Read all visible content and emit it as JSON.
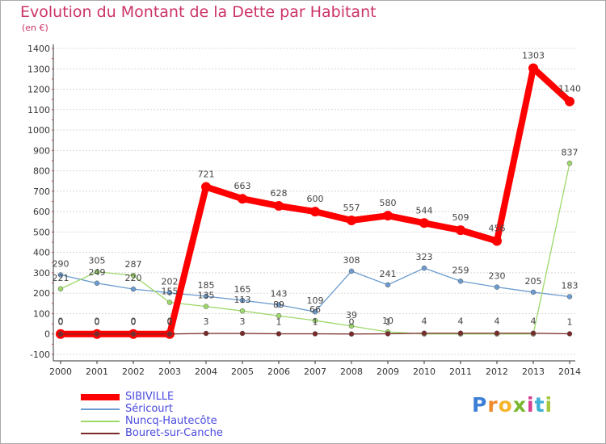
{
  "title": "Evolution du Montant de la Dette par Habitant",
  "unit": "(en €)",
  "brand": {
    "letters": [
      "P",
      "r",
      "o",
      "x",
      "i",
      "t",
      "i"
    ],
    "colors": [
      "#3d7fd6",
      "#f08a2a",
      "#f5b52f",
      "#79b82f",
      "#d63d8f",
      "#3db0d6",
      "#a5c83a"
    ]
  },
  "chart_data": {
    "type": "line",
    "x": [
      "2000",
      "2001",
      "2002",
      "2003",
      "2004",
      "2005",
      "2006",
      "2007",
      "2008",
      "2009",
      "2010",
      "2011",
      "2012",
      "2013",
      "2014"
    ],
    "ylim": [
      -100,
      1400
    ],
    "yticks": [
      "-100",
      "0",
      "100",
      "200",
      "300",
      "400",
      "500",
      "600",
      "700",
      "800",
      "900",
      "1000",
      "1100",
      "1200",
      "1300",
      "1400"
    ],
    "grid": "horizontal",
    "legend_position": "bottom-left",
    "series": [
      {
        "name": "SIBIVILLE",
        "color": "#ff0000",
        "values": [
          0,
          0,
          0,
          0,
          721,
          663,
          628,
          600,
          557,
          580,
          544,
          509,
          456,
          1303,
          1140
        ],
        "labels": [
          "0",
          "0",
          "0",
          "0",
          "721",
          "663",
          "628",
          "600",
          "557",
          "580",
          "544",
          "509",
          "456",
          "1303",
          "1140"
        ]
      },
      {
        "name": "Séricourt",
        "color": "#6c9ccf",
        "values": [
          290,
          249,
          220,
          202,
          185,
          165,
          143,
          109,
          308,
          241,
          323,
          259,
          230,
          205,
          183
        ],
        "labels": [
          "290",
          "249",
          "220",
          "202",
          "185",
          "165",
          "143",
          "109",
          "308",
          "241",
          "323",
          "259",
          "230",
          "205",
          "183"
        ]
      },
      {
        "name": "Nuncq-Hautecôte",
        "color": "#9ed86a",
        "values": [
          221,
          305,
          287,
          155,
          135,
          113,
          89,
          66,
          39,
          10,
          0,
          0,
          0,
          0,
          837
        ],
        "labels": [
          "221",
          "305",
          "287",
          "155",
          "135",
          "113",
          "89",
          "66",
          "39",
          "10",
          "",
          "",
          "",
          "",
          "837"
        ]
      },
      {
        "name": "Bouret-sur-Canche",
        "color": "#7a2a2a",
        "values": [
          0,
          0,
          0,
          0,
          3,
          3,
          1,
          1,
          0,
          1,
          4,
          4,
          4,
          4,
          1
        ],
        "labels": [
          "0",
          "0",
          "0",
          "0",
          "3",
          "3",
          "1",
          "1",
          "0",
          "1",
          "4",
          "4",
          "4",
          "4",
          "1"
        ]
      }
    ]
  }
}
